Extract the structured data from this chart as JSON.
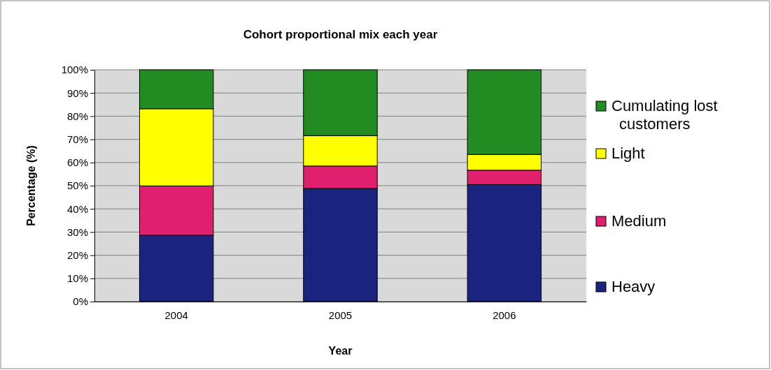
{
  "chart_data": {
    "type": "bar",
    "title": "Cohort proportional mix each year",
    "xlabel": "Year",
    "ylabel": "Percentage (%)",
    "categories": [
      "2004",
      "2005",
      "2006"
    ],
    "stacked": true,
    "series": [
      {
        "name": "Heavy",
        "color": "#1a237e",
        "values": [
          28.6,
          48.8,
          50.5
        ]
      },
      {
        "name": "Medium",
        "color": "#e0206e",
        "values": [
          21.3,
          9.7,
          6.2
        ]
      },
      {
        "name": "Light",
        "color": "#ffff00",
        "values": [
          33.3,
          13.1,
          6.8
        ]
      },
      {
        "name": "Cumulating lost customers",
        "color": "#228b22",
        "values": [
          16.8,
          28.4,
          36.5
        ]
      }
    ],
    "ylim": [
      0,
      100
    ],
    "yticks": [
      {
        "value": 0,
        "label": "0%"
      },
      {
        "value": 10,
        "label": "10%"
      },
      {
        "value": 20,
        "label": "20%"
      },
      {
        "value": 30,
        "label": "30%"
      },
      {
        "value": 40,
        "label": "40%"
      },
      {
        "value": 50,
        "label": "50%"
      },
      {
        "value": 60,
        "label": "60%"
      },
      {
        "value": 70,
        "label": "70%"
      },
      {
        "value": 80,
        "label": "80%"
      },
      {
        "value": 90,
        "label": "90%"
      },
      {
        "value": 100,
        "label": "100%"
      }
    ],
    "grid": "y",
    "legend": "right"
  }
}
